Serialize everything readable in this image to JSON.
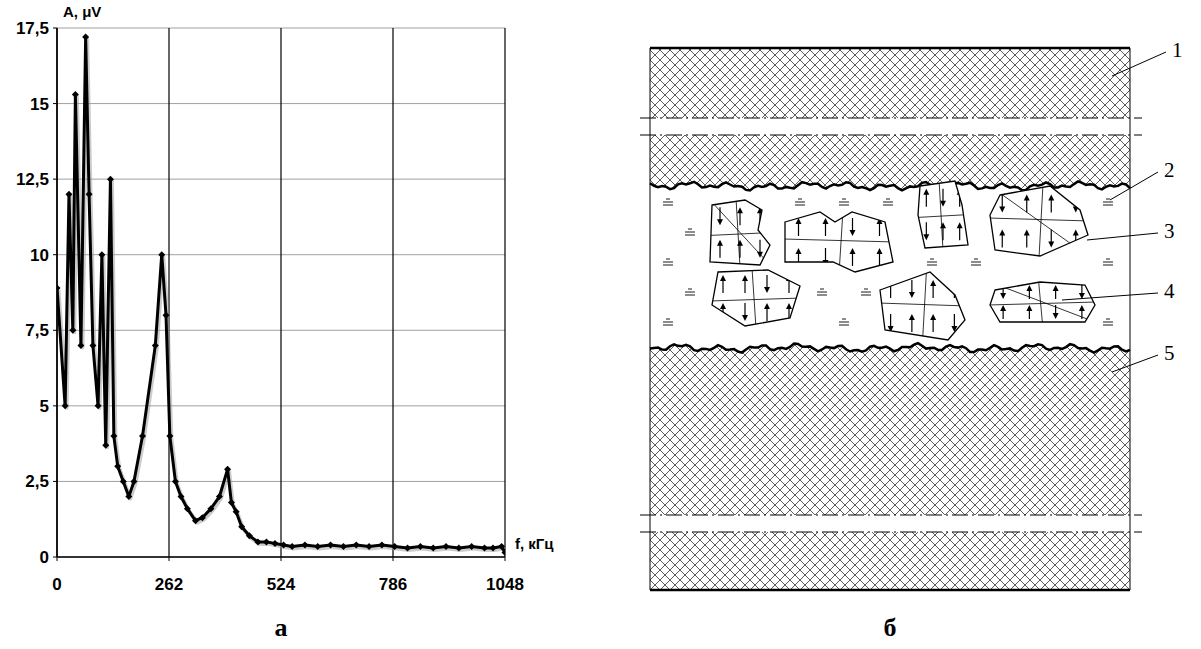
{
  "chart_data": {
    "type": "line",
    "panel": "а",
    "y_label": "A, μV",
    "x_label": "f, кГц",
    "x": [
      0,
      19,
      28,
      37,
      43,
      56,
      67,
      75,
      84,
      96,
      105,
      114,
      125,
      133,
      142,
      155,
      168,
      180,
      200,
      230,
      245,
      255,
      264,
      277,
      290,
      305,
      324,
      340,
      360,
      380,
      399,
      408,
      419,
      432,
      450,
      470,
      490,
      510,
      530,
      550,
      580,
      610,
      640,
      670,
      700,
      730,
      760,
      790,
      820,
      850,
      880,
      910,
      940,
      970,
      1000,
      1020,
      1040,
      1048
    ],
    "values": [
      8.9,
      5,
      12,
      7.5,
      15.3,
      7,
      17.2,
      12,
      7,
      5,
      10,
      3.7,
      12.5,
      4,
      3,
      2.5,
      2,
      2.5,
      4,
      7,
      10,
      8,
      4,
      2.5,
      2,
      1.6,
      1.2,
      1.3,
      1.6,
      2,
      2.9,
      1.8,
      1.5,
      1,
      0.7,
      0.5,
      0.5,
      0.45,
      0.4,
      0.35,
      0.4,
      0.35,
      0.4,
      0.35,
      0.4,
      0.35,
      0.4,
      0.35,
      0.3,
      0.35,
      0.3,
      0.35,
      0.3,
      0.35,
      0.3,
      0.3,
      0.35,
      0.15
    ],
    "color": "#000000",
    "marker": "diamond",
    "xlim": [
      0,
      1048
    ],
    "ylim": [
      0,
      17.5
    ],
    "xticks": [
      0,
      262,
      524,
      786,
      1048
    ],
    "yticks": [
      0,
      {
        "value": 2.5,
        "label": "2,5"
      },
      5,
      {
        "value": 7.5,
        "label": "7,5"
      },
      10,
      {
        "value": 12.5,
        "label": "12,5"
      },
      15,
      {
        "value": 17.5,
        "label": "17,5"
      }
    ],
    "grid": true
  },
  "diagram": {
    "panel": "б",
    "labels": [
      "1",
      "2",
      "3",
      "4",
      "5"
    ]
  }
}
